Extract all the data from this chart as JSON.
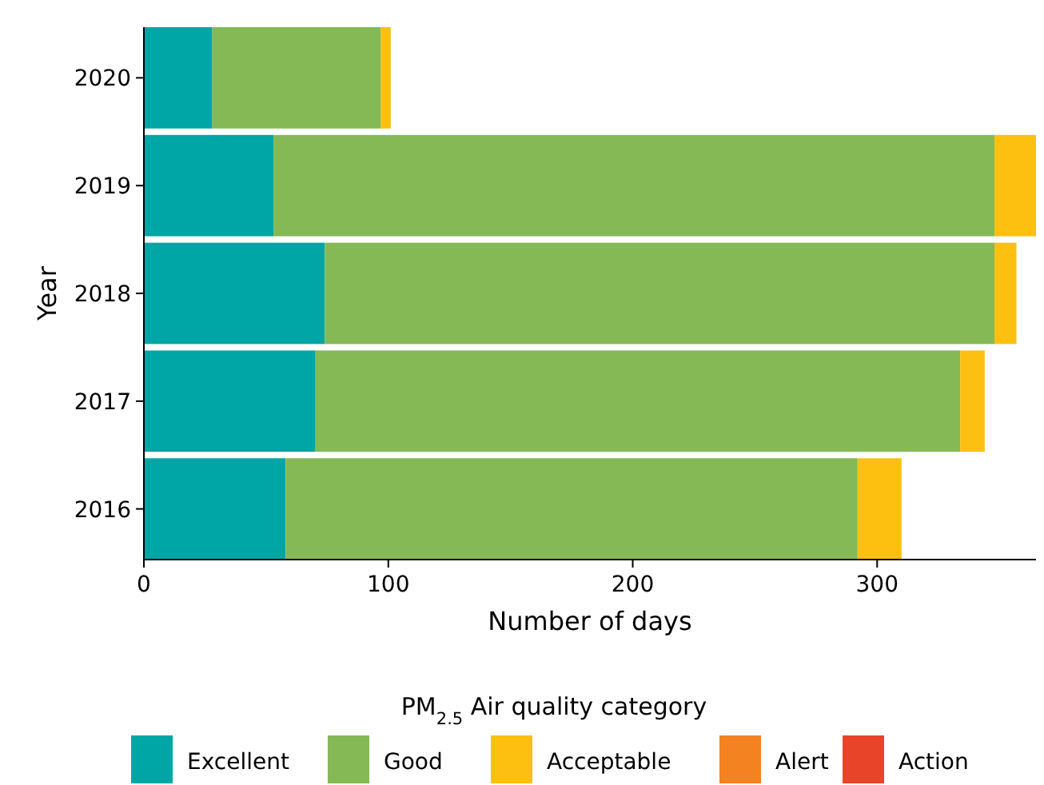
{
  "chart_data": {
    "type": "bar",
    "orientation": "horizontal",
    "stacked": true,
    "xlabel": "Number of days",
    "ylabel": "Year",
    "legend_title": "PM$_{2.5}$ Air quality category",
    "legend": "bottom",
    "categories": [
      "2020",
      "2019",
      "2018",
      "2017",
      "2016"
    ],
    "xlim": [
      0,
      365
    ],
    "xticks": [
      0,
      100,
      200,
      300
    ],
    "series": [
      {
        "name": "Excellent",
        "color": "#00a6a6",
        "values": [
          28,
          53,
          74,
          70,
          58
        ]
      },
      {
        "name": "Good",
        "color": "#84b956",
        "values": [
          69,
          295,
          274,
          264,
          234
        ]
      },
      {
        "name": "Acceptable",
        "color": "#fdc010",
        "values": [
          4,
          17,
          9,
          10,
          18
        ]
      },
      {
        "name": "Alert",
        "color": "#f58220",
        "values": [
          0,
          0,
          0,
          0,
          0
        ]
      },
      {
        "name": "Action",
        "color": "#e8442a",
        "values": [
          0,
          0,
          0,
          0,
          0
        ]
      }
    ]
  }
}
